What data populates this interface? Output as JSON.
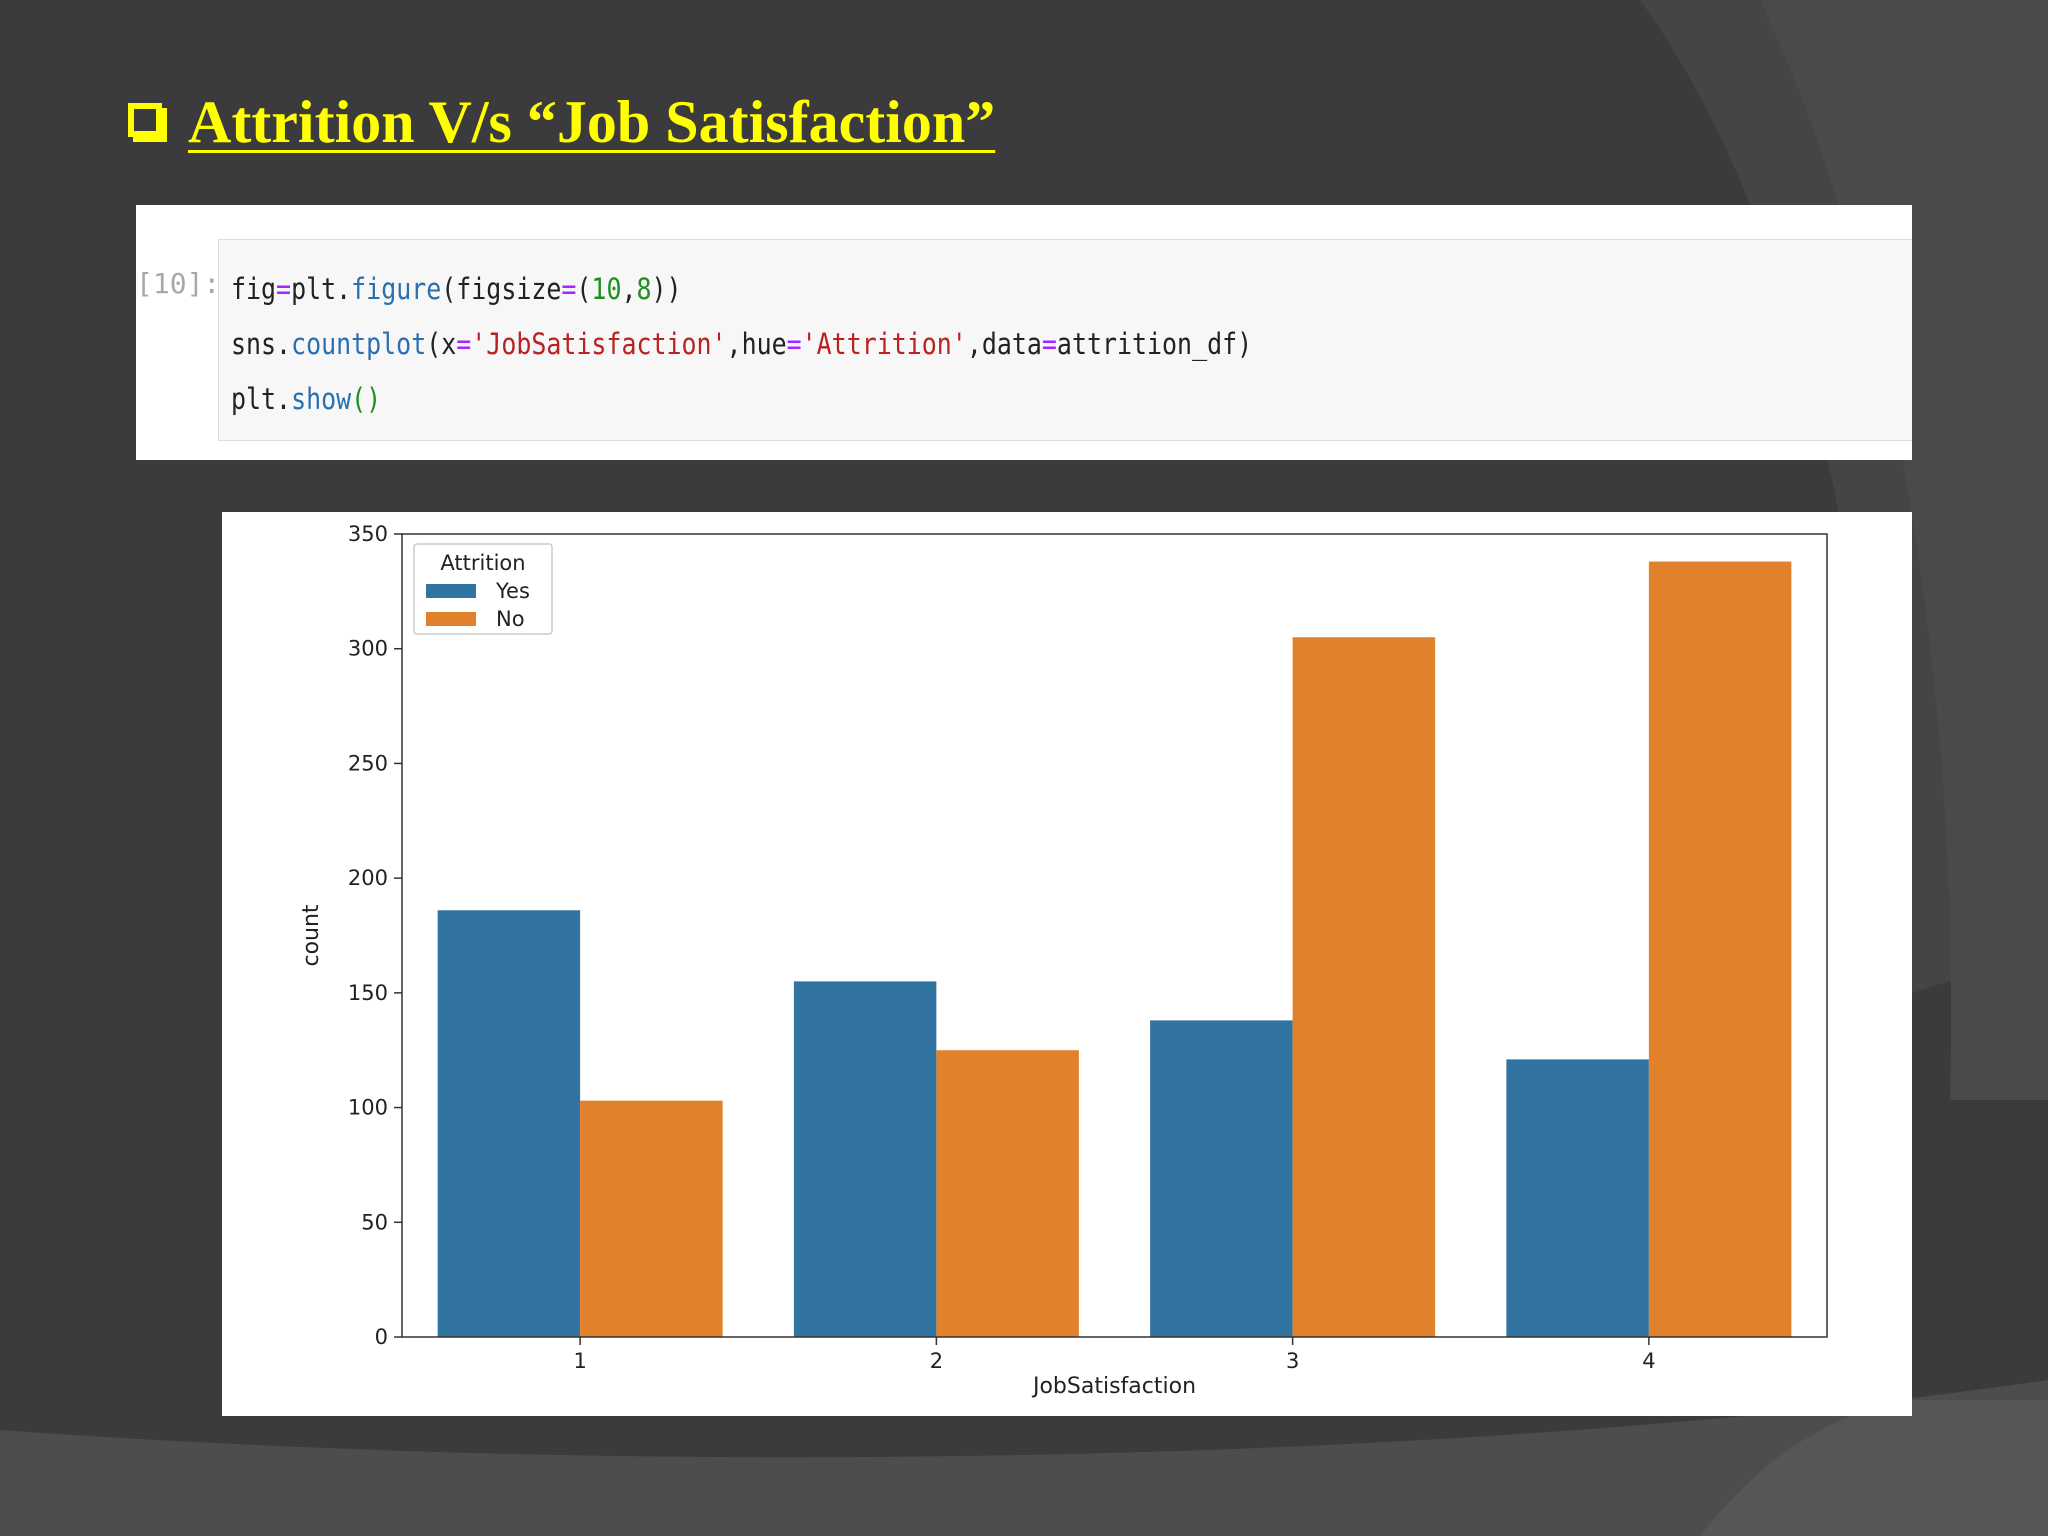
{
  "slide": {
    "title": "Attrition V/s “Job Satisfaction”",
    "title_color": "#ffff00",
    "background_color": "#3b3a3c"
  },
  "code_cell": {
    "prompt": "[10]:",
    "lines": [
      "fig=plt.figure(figsize=(10,8))",
      "sns.countplot(x='JobSatisfaction',hue='Attrition',data=attrition_df)",
      "plt.show()"
    ]
  },
  "chart_data": {
    "type": "bar",
    "categories": [
      "1",
      "2",
      "3",
      "4"
    ],
    "series": [
      {
        "name": "Yes",
        "color": "#3274a1",
        "values": [
          186,
          155,
          138,
          121
        ]
      },
      {
        "name": "No",
        "color": "#e1812c",
        "values": [
          103,
          125,
          305,
          338
        ]
      }
    ],
    "xlabel": "JobSatisfaction",
    "ylabel": "count",
    "ylim": [
      0,
      350
    ],
    "yticks": [
      0,
      50,
      100,
      150,
      200,
      250,
      300,
      350
    ],
    "legend": {
      "title": "Attrition",
      "placement": "top-left"
    },
    "grid": false
  }
}
